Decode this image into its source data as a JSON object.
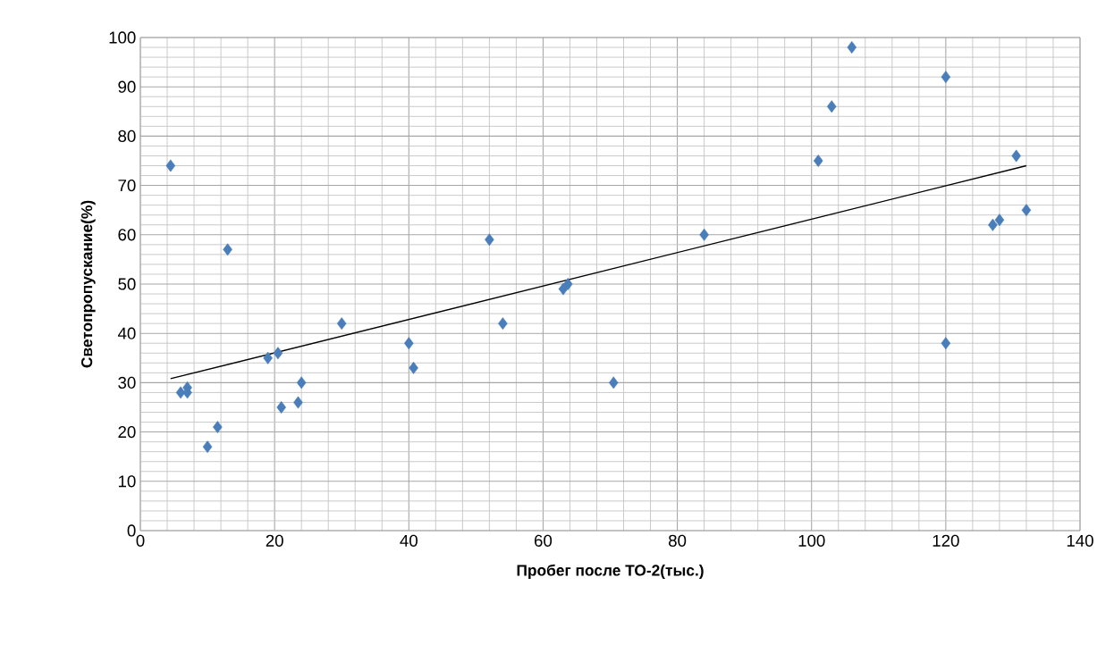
{
  "chart_data": {
    "type": "scatter",
    "xlabel": "Пробег после ТО-2(тыс.)",
    "ylabel": "Светопропускание(%)",
    "xlim": [
      0,
      140
    ],
    "ylim": [
      0,
      100
    ],
    "xticks": [
      0,
      20,
      40,
      60,
      80,
      100,
      120,
      140
    ],
    "yticks": [
      0,
      10,
      20,
      30,
      40,
      50,
      60,
      70,
      80,
      90,
      100
    ],
    "grid": true,
    "marker": "diamond",
    "series": [
      {
        "color": "#4a7ebb",
        "x": [
          4.5,
          6,
          7,
          7,
          10,
          11.5,
          13,
          19,
          20.5,
          21,
          23.5,
          24,
          30,
          40,
          40.7,
          52,
          54,
          63,
          63.7,
          70.5,
          84,
          101,
          103,
          106,
          120,
          120,
          127,
          128,
          130.5,
          132
        ],
        "values": [
          74,
          28,
          29,
          28,
          17,
          21,
          57,
          35,
          36,
          25,
          26,
          30,
          42,
          38,
          33,
          59,
          42,
          49,
          50,
          30,
          60,
          75,
          86,
          98,
          92,
          38,
          62,
          63,
          76,
          65
        ]
      },
      {
        "type": "line",
        "color": "#000000",
        "marker": "none",
        "x": [
          4.5,
          132
        ],
        "values": [
          30.8,
          74
        ]
      }
    ]
  }
}
